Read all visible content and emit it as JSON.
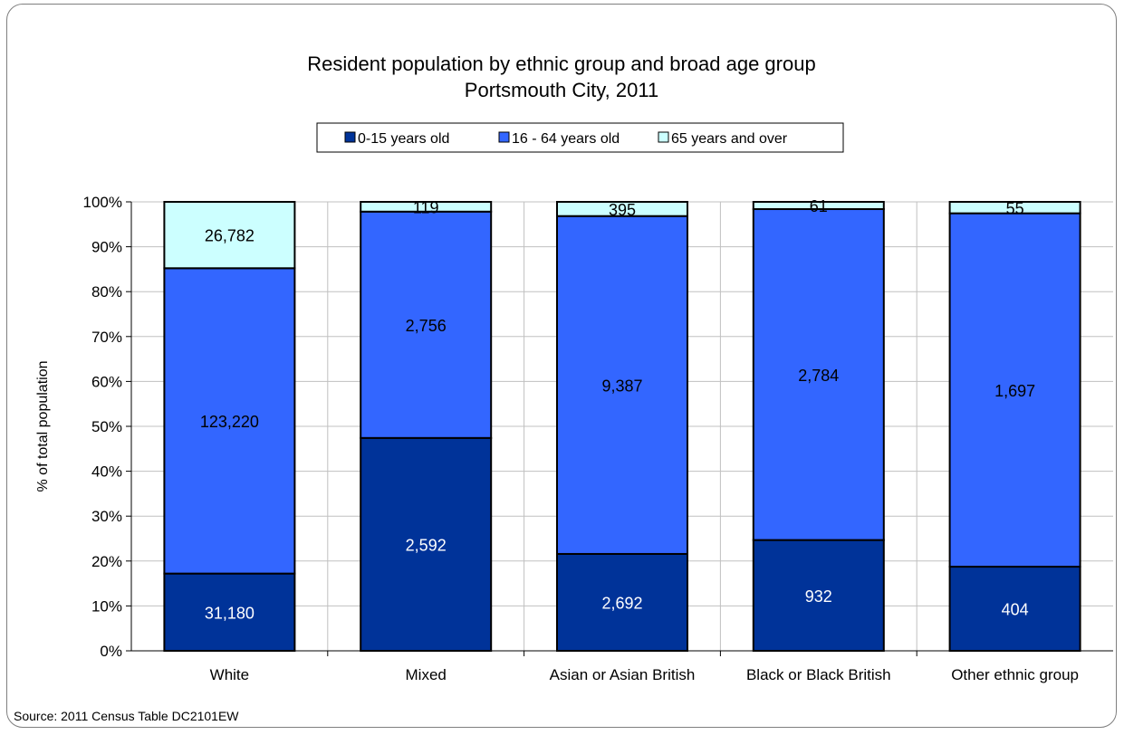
{
  "chart_data": {
    "type": "bar",
    "stacked": "percent",
    "title": [
      "Resident population by ethnic group and broad age group",
      "Portsmouth City, 2011"
    ],
    "ylabel": "% of total population",
    "xlabel": "",
    "ylim": [
      0,
      100
    ],
    "yticks": [
      "0%",
      "10%",
      "20%",
      "30%",
      "40%",
      "50%",
      "60%",
      "70%",
      "80%",
      "90%",
      "100%"
    ],
    "categories": [
      "White",
      "Mixed",
      "Asian or Asian British",
      "Black or Black British",
      "Other ethnic group"
    ],
    "series": [
      {
        "name": "0-15 years old",
        "values": [
          31180,
          2592,
          2692,
          932,
          404
        ],
        "labels": [
          "31,180",
          "2,592",
          "2,692",
          "932",
          "404"
        ],
        "color": "#003399",
        "label_color": "#ffffff"
      },
      {
        "name": "16 - 64 years old",
        "values": [
          123220,
          2756,
          9387,
          2784,
          1697
        ],
        "labels": [
          "123,220",
          "2,756",
          "9,387",
          "2,784",
          "1,697"
        ],
        "color": "#3366ff",
        "label_color": "#000000"
      },
      {
        "name": "65 years and over",
        "values": [
          26782,
          119,
          395,
          61,
          55
        ],
        "labels": [
          "26,782",
          "119",
          "395",
          "61",
          "55"
        ],
        "color": "#ccffff",
        "label_color": "#000000"
      }
    ],
    "grid": true,
    "legend": "top-center",
    "source": "Source: 2011 Census Table DC2101EW"
  }
}
